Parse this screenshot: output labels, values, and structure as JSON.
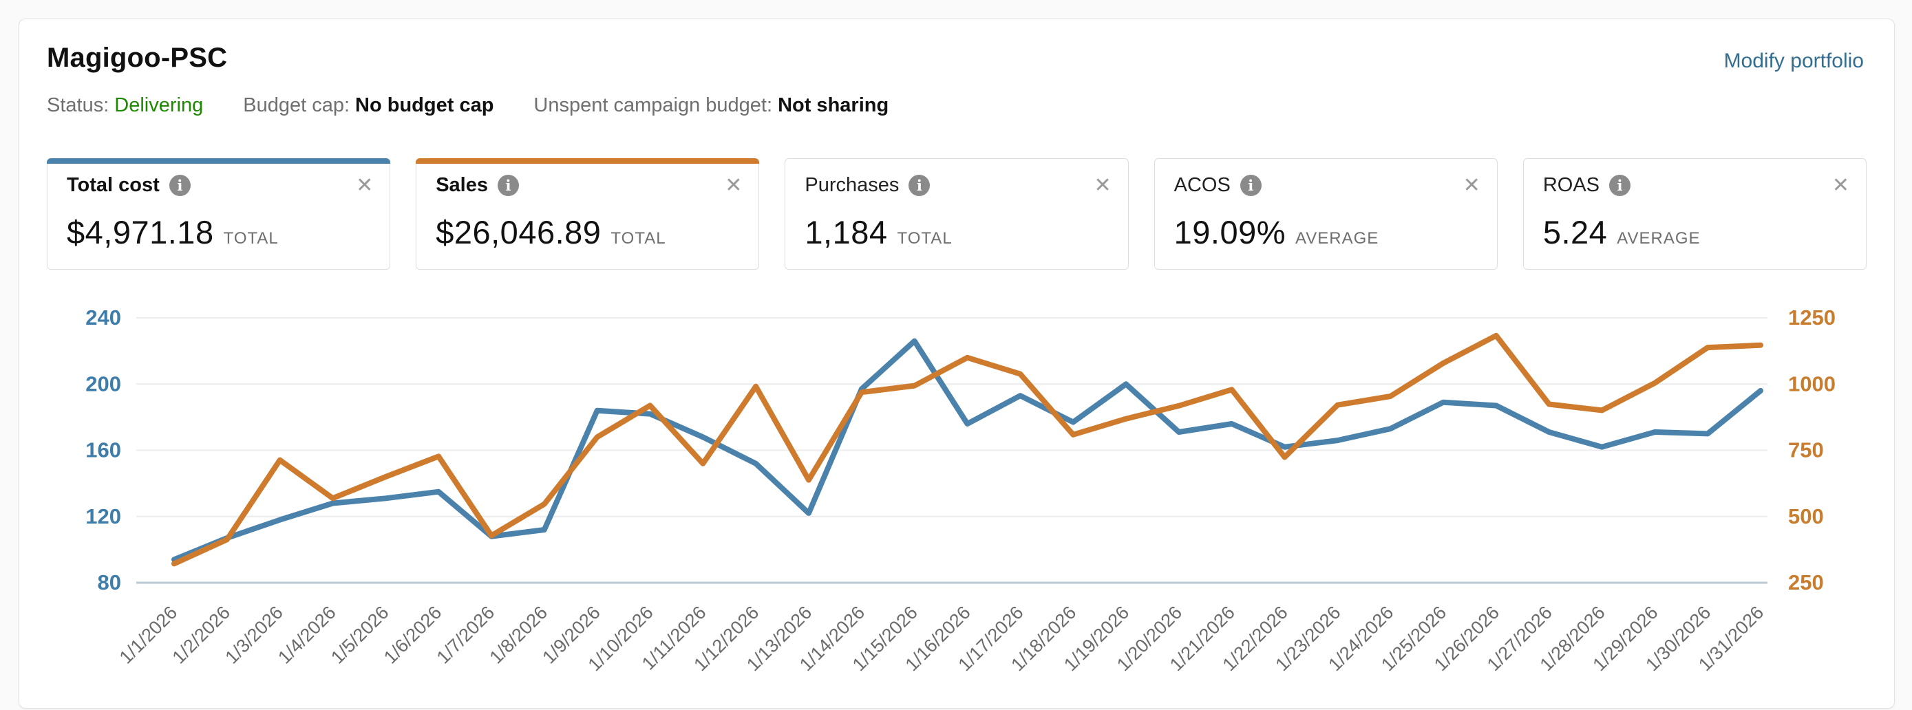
{
  "header": {
    "title": "Magigoo-PSC",
    "modify_link": "Modify portfolio",
    "status": [
      {
        "label": "Status:",
        "value": "Delivering",
        "value_color": "green"
      },
      {
        "label": "Budget cap:",
        "value": "No budget cap",
        "value_color": "dark"
      },
      {
        "label": "Unspent campaign budget:",
        "value": "Not sharing",
        "value_color": "dark"
      }
    ]
  },
  "cards": [
    {
      "label": "Total cost",
      "value": "$4,971.18",
      "unit": "TOTAL",
      "accent": "#4a82ab",
      "info_icon": "info-icon",
      "close_icon": "close-icon"
    },
    {
      "label": "Sales",
      "value": "$26,046.89",
      "unit": "TOTAL",
      "accent": "#cf7b2e",
      "info_icon": "info-icon",
      "close_icon": "close-icon"
    },
    {
      "label": "Purchases",
      "value": "1,184",
      "unit": "TOTAL",
      "accent": null,
      "info_icon": "info-icon",
      "close_icon": "close-icon"
    },
    {
      "label": "ACOS",
      "value": "19.09%",
      "unit": "AVERAGE",
      "accent": null,
      "info_icon": "info-icon",
      "close_icon": "close-icon"
    },
    {
      "label": "ROAS",
      "value": "5.24",
      "unit": "AVERAGE",
      "accent": null,
      "info_icon": "info-icon",
      "close_icon": "close-icon"
    }
  ],
  "chart_data": {
    "type": "line",
    "x": [
      "1/1/2026",
      "1/2/2026",
      "1/3/2026",
      "1/4/2026",
      "1/5/2026",
      "1/6/2026",
      "1/7/2026",
      "1/8/2026",
      "1/9/2026",
      "1/10/2026",
      "1/11/2026",
      "1/12/2026",
      "1/13/2026",
      "1/14/2026",
      "1/15/2026",
      "1/16/2026",
      "1/17/2026",
      "1/18/2026",
      "1/19/2026",
      "1/20/2026",
      "1/21/2026",
      "1/22/2026",
      "1/23/2026",
      "1/24/2026",
      "1/25/2026",
      "1/26/2026",
      "1/27/2026",
      "1/28/2026",
      "1/29/2026",
      "1/30/2026",
      "1/31/2026"
    ],
    "series": [
      {
        "name": "Total cost",
        "axis": "left",
        "color": "#4a82ab",
        "values": [
          94,
          107,
          118,
          128,
          131,
          135,
          108,
          112,
          184,
          182,
          168,
          152,
          122,
          197,
          226,
          176,
          193,
          177,
          200,
          171,
          176,
          162,
          166,
          173,
          189,
          187,
          171,
          162,
          171,
          170,
          196
        ]
      },
      {
        "name": "Sales",
        "axis": "right",
        "color": "#cf7b2e",
        "values": [
          322,
          413,
          713,
          569,
          650,
          727,
          428,
          547,
          800,
          919,
          700,
          991,
          638,
          969,
          994,
          1100,
          1038,
          809,
          869,
          918,
          979,
          724,
          921,
          954,
          1079,
          1183,
          924,
          901,
          1004,
          1138,
          1147
        ]
      }
    ],
    "left_axis": {
      "ticks": [
        240,
        200,
        160,
        120,
        80
      ],
      "range": [
        80,
        240
      ],
      "color": "#3e7ca9"
    },
    "right_axis": {
      "ticks": [
        1250,
        1000,
        750,
        500,
        250
      ],
      "range": [
        250,
        1250
      ],
      "color": "#c87c2e"
    },
    "grid": true,
    "grid_color": "#ececec",
    "baseline_color": "#b9c9d6",
    "x_label_color": "#6b6b6b",
    "legend_position": "none"
  }
}
